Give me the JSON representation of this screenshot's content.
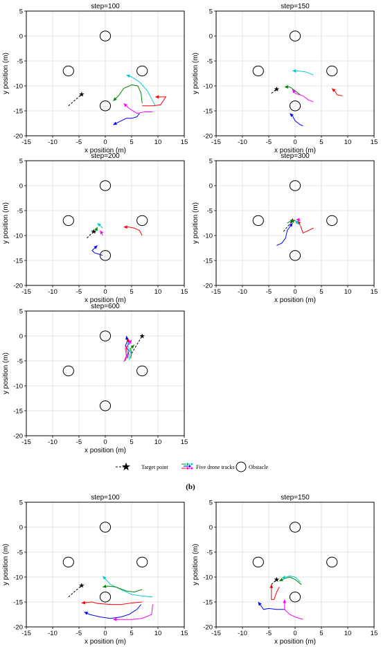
{
  "colors": {
    "drone_1": "#0000ff",
    "drone_2": "#ff0000",
    "drone_3": "#00aaff",
    "drone_4": "#00cccc",
    "drone_5": "#ff00ff",
    "drone_green": "#008800",
    "target": "#000000",
    "grid": "#dddddd"
  },
  "legend": {
    "target_label": "Target point",
    "tracks_label": "Five drone tracks",
    "obstacle_label": "Obstacle"
  },
  "sublabel": "(b)",
  "chart_data": [
    {
      "type": "line",
      "title": "step=100",
      "xlabel": "x position (m)",
      "ylabel": "y position (m)",
      "xlim": [
        -15,
        15
      ],
      "ylim": [
        -20,
        5
      ],
      "xticks": [
        -15,
        -10,
        -5,
        0,
        5,
        10,
        15
      ],
      "yticks": [
        5,
        0,
        -5,
        -10,
        -15,
        -20
      ],
      "grid": true,
      "obstacles": [
        [
          0,
          0
        ],
        [
          -7,
          -7
        ],
        [
          7,
          -7
        ],
        [
          0,
          -14
        ]
      ],
      "obstacle_radius": 1,
      "target": {
        "x": [
          -7,
          -4.5
        ],
        "y": [
          -14,
          -11.7
        ]
      },
      "series": [
        {
          "color": "#008800",
          "x": [
            7,
            6.8,
            6.2,
            5,
            3.5,
            2.5,
            1.5
          ],
          "y": [
            -13.5,
            -11.5,
            -10,
            -9.8,
            -10.5,
            -12,
            -13
          ]
        },
        {
          "color": "#00cccc",
          "x": [
            9.5,
            8,
            6.5,
            5,
            4
          ],
          "y": [
            -14,
            -11,
            -9.2,
            -8.2,
            -7.8
          ]
        },
        {
          "color": "#ff0000",
          "x": [
            7,
            9,
            10.5,
            11,
            11.5,
            9.5
          ],
          "y": [
            -14,
            -14,
            -13.8,
            -13,
            -12.2,
            -12.2
          ]
        },
        {
          "color": "#ff00ff",
          "x": [
            9,
            7.5,
            6,
            4.5,
            3.5
          ],
          "y": [
            -15.2,
            -15.2,
            -15.5,
            -14.5,
            -13.5
          ]
        },
        {
          "color": "#0000ff",
          "x": [
            6.5,
            6,
            5,
            4,
            3,
            1.5
          ],
          "y": [
            -15.5,
            -16.2,
            -16.5,
            -16.5,
            -17,
            -17.8
          ]
        }
      ]
    },
    {
      "type": "line",
      "title": "step=150",
      "xlabel": "x position (m)",
      "ylabel": "y position (m)",
      "xlim": [
        -15,
        15
      ],
      "ylim": [
        -20,
        5
      ],
      "xticks": [
        -15,
        -10,
        -5,
        0,
        5,
        10,
        15
      ],
      "yticks": [
        5,
        0,
        -5,
        -10,
        -15,
        -20
      ],
      "grid": true,
      "obstacles": [
        [
          0,
          0
        ],
        [
          -7,
          -7
        ],
        [
          7,
          -7
        ],
        [
          0,
          -14
        ]
      ],
      "obstacle_radius": 1,
      "target": {
        "x": [
          -4.5,
          -3.5
        ],
        "y": [
          -11.5,
          -10.6
        ]
      },
      "series": [
        {
          "color": "#00cccc",
          "x": [
            3.5,
            2,
            0.5,
            -0.5
          ],
          "y": [
            -7.8,
            -7.2,
            -7,
            -7
          ]
        },
        {
          "color": "#008800",
          "x": [
            1,
            0,
            -1,
            -2
          ],
          "y": [
            -11.8,
            -11,
            -10.2,
            -10.2
          ]
        },
        {
          "color": "#ff00ff",
          "x": [
            3.5,
            2.5,
            1.5,
            0,
            -0.5
          ],
          "y": [
            -13.2,
            -12.8,
            -12,
            -11.5,
            -10.7
          ]
        },
        {
          "color": "#ff0000",
          "x": [
            9,
            8,
            7.5,
            7
          ],
          "y": [
            -12,
            -11.8,
            -11,
            -10.5
          ]
        },
        {
          "color": "#0000ff",
          "x": [
            1.5,
            1,
            0,
            -0.5,
            -1
          ],
          "y": [
            -18,
            -17.8,
            -17,
            -16,
            -15.5
          ]
        }
      ]
    },
    {
      "type": "line",
      "title": "step=200",
      "xlabel": "x position (m)",
      "ylabel": "y position (m)",
      "xlim": [
        -15,
        15
      ],
      "ylim": [
        -20,
        5
      ],
      "xticks": [
        -15,
        -10,
        -5,
        0,
        5,
        10,
        15
      ],
      "yticks": [
        5,
        0,
        -5,
        -10,
        -15,
        -20
      ],
      "grid": true,
      "obstacles": [
        [
          0,
          0
        ],
        [
          -7,
          -7
        ],
        [
          7,
          -7
        ],
        [
          0,
          -14
        ]
      ],
      "obstacle_radius": 1,
      "target": {
        "x": [
          -3.5,
          -2.2
        ],
        "y": [
          -10.5,
          -9.2
        ]
      },
      "series": [
        {
          "color": "#ff0000",
          "x": [
            7,
            6.5,
            5.5,
            4.5,
            3.5
          ],
          "y": [
            -10,
            -9,
            -8.5,
            -8.3,
            -8.3
          ]
        },
        {
          "color": "#0000ff",
          "x": [
            -0.5,
            -1,
            -2,
            -2.5,
            -1.5
          ],
          "y": [
            -14,
            -13.8,
            -13.5,
            -13,
            -12
          ]
        },
        {
          "color": "#00cccc",
          "x": [
            -0.5,
            -1,
            -1.5
          ],
          "y": [
            -8.5,
            -8,
            -7.5
          ]
        },
        {
          "color": "#ff00ff",
          "x": [
            -0.5,
            -0.8,
            -1
          ],
          "y": [
            -10,
            -9.3,
            -9
          ]
        },
        {
          "color": "#008800",
          "x": [
            -2,
            -1.8,
            -1.5
          ],
          "y": [
            -9.5,
            -9,
            -8.3
          ]
        }
      ]
    },
    {
      "type": "line",
      "title": "step=300",
      "xlabel": "x position (m)",
      "ylabel": "y position (m)",
      "xlim": [
        -15,
        15
      ],
      "ylim": [
        -20,
        5
      ],
      "xticks": [
        -15,
        -10,
        -5,
        0,
        5,
        10,
        15
      ],
      "yticks": [
        5,
        0,
        -5,
        -10,
        -15,
        -20
      ],
      "grid": true,
      "obstacles": [
        [
          0,
          0
        ],
        [
          -7,
          -7
        ],
        [
          7,
          -7
        ],
        [
          0,
          -14
        ]
      ],
      "obstacle_radius": 1,
      "target": {
        "x": [
          -2.2,
          -0.5
        ],
        "y": [
          -9.2,
          -7
        ]
      },
      "series": [
        {
          "color": "#0000ff",
          "x": [
            -3.5,
            -2.5,
            -1.8,
            -1.5,
            -0.5
          ],
          "y": [
            -12,
            -11.5,
            -10.5,
            -9,
            -7.5
          ]
        },
        {
          "color": "#ff0000",
          "x": [
            3.5,
            2.5,
            1.5,
            1,
            0.5
          ],
          "y": [
            -8.5,
            -9,
            -9.5,
            -8,
            -7
          ]
        },
        {
          "color": "#008800",
          "x": [
            -1.5,
            -1,
            0
          ],
          "y": [
            -7.5,
            -7.2,
            -7
          ]
        },
        {
          "color": "#00cccc",
          "x": [
            1,
            0.5,
            0
          ],
          "y": [
            -8,
            -7.5,
            -7
          ]
        },
        {
          "color": "#ff00ff",
          "x": [
            1,
            0.5,
            0.2
          ],
          "y": [
            -7,
            -6.8,
            -6.8
          ]
        }
      ]
    },
    {
      "type": "line",
      "title": "step=600",
      "xlabel": "x position (m)",
      "ylabel": "y position (m)",
      "xlim": [
        -15,
        15
      ],
      "ylim": [
        -20,
        5
      ],
      "xticks": [
        -15,
        -10,
        -5,
        0,
        5,
        10,
        15
      ],
      "yticks": [
        5,
        0,
        -5,
        -10,
        -15,
        -20
      ],
      "grid": true,
      "obstacles": [
        [
          0,
          0
        ],
        [
          -7,
          -7
        ],
        [
          7,
          -7
        ],
        [
          0,
          -14
        ]
      ],
      "obstacle_radius": 1,
      "target": {
        "x": [
          5,
          7
        ],
        "y": [
          -3.5,
          0
        ]
      },
      "series": [
        {
          "color": "#0000ff",
          "x": [
            4.2,
            4.5,
            3.8,
            4.2,
            4
          ],
          "y": [
            -4.5,
            -3,
            -2,
            -1,
            0
          ]
        },
        {
          "color": "#ff0000",
          "x": [
            3.8,
            4.2,
            4,
            4.5,
            4.3
          ],
          "y": [
            -5,
            -3.5,
            -2.5,
            -1.5,
            -0.5
          ]
        },
        {
          "color": "#00cccc",
          "x": [
            4.5,
            4.8,
            4.3,
            4.6
          ],
          "y": [
            -4.8,
            -3.2,
            -2,
            -1
          ]
        },
        {
          "color": "#ff00ff",
          "x": [
            3.5,
            4,
            3.8,
            4.5,
            5
          ],
          "y": [
            -5.2,
            -4,
            -2.5,
            -1.5,
            -0.8
          ]
        },
        {
          "color": "#008800",
          "x": [
            4.8,
            5,
            4.8,
            5.5
          ],
          "y": [
            -4.5,
            -3.5,
            -2.5,
            -1.8
          ]
        }
      ]
    },
    {
      "type": "line",
      "title": "step=100",
      "xlabel": "x position (m)",
      "ylabel": "y position (m)",
      "xlim": [
        -15,
        15
      ],
      "ylim": [
        -20,
        5
      ],
      "xticks": [
        -15,
        -10,
        -5,
        0,
        5,
        10,
        15
      ],
      "yticks": [
        5,
        0,
        -5,
        -10,
        -15,
        -20
      ],
      "grid": true,
      "obstacles": [
        [
          0,
          0
        ],
        [
          -7,
          -7
        ],
        [
          7,
          -7
        ],
        [
          0,
          -14
        ]
      ],
      "obstacle_radius": 1,
      "target": {
        "x": [
          -7,
          -4.5
        ],
        "y": [
          -14,
          -11.7
        ]
      },
      "series": [
        {
          "color": "#00cccc",
          "x": [
            9,
            7,
            5,
            3,
            1,
            -0.5
          ],
          "y": [
            -14,
            -13.8,
            -13.5,
            -12.5,
            -11.5,
            -9.8
          ]
        },
        {
          "color": "#008800",
          "x": [
            7,
            5.5,
            4,
            2,
            0.5,
            -0.5
          ],
          "y": [
            -12.5,
            -13,
            -12.8,
            -12,
            -11.8,
            -12
          ]
        },
        {
          "color": "#ff0000",
          "x": [
            7,
            5,
            3,
            1,
            -1.5,
            -2.5,
            -4.5
          ],
          "y": [
            -15,
            -15.2,
            -15.5,
            -15.5,
            -15.3,
            -15,
            -15.2
          ]
        },
        {
          "color": "#ff00ff",
          "x": [
            9,
            8.8,
            7,
            5,
            3,
            1.5
          ],
          "y": [
            -15.5,
            -17.5,
            -18.3,
            -18.5,
            -18.5,
            -18.5
          ]
        },
        {
          "color": "#0000ff",
          "x": [
            6.8,
            6,
            4.5,
            3,
            1,
            -1,
            -3,
            -4
          ],
          "y": [
            -15.5,
            -16.5,
            -17.5,
            -18,
            -18.3,
            -18,
            -17.5,
            -17
          ]
        }
      ]
    },
    {
      "type": "line",
      "title": "step=150",
      "xlabel": "x position (m)",
      "ylabel": "y position (m)",
      "xlim": [
        -15,
        15
      ],
      "ylim": [
        -20,
        5
      ],
      "xticks": [
        -15,
        -10,
        -5,
        0,
        5,
        10,
        15
      ],
      "yticks": [
        5,
        0,
        -5,
        -10,
        -15,
        -20
      ],
      "grid": true,
      "obstacles": [
        [
          0,
          0
        ],
        [
          -7,
          -7
        ],
        [
          7,
          -7
        ],
        [
          0,
          -14
        ]
      ],
      "obstacle_radius": 1,
      "target": {
        "x": [
          -4.5,
          -3.5
        ],
        "y": [
          -11.5,
          -10.5
        ]
      },
      "series": [
        {
          "color": "#008800",
          "x": [
            1.2,
            0,
            -1,
            -2,
            -3
          ],
          "y": [
            -11.5,
            -10.5,
            -10,
            -10.3,
            -10.8
          ]
        },
        {
          "color": "#00cccc",
          "x": [
            1,
            0,
            -1,
            -2.5
          ],
          "y": [
            -11,
            -10,
            -9.8,
            -10.2
          ]
        },
        {
          "color": "#ff0000",
          "x": [
            -3,
            -3.5,
            -4,
            -4.5,
            -4.5
          ],
          "y": [
            -12,
            -13,
            -14.5,
            -14.5,
            -11.5
          ]
        },
        {
          "color": "#ff00ff",
          "x": [
            1.5,
            0,
            -1,
            -2,
            -2
          ],
          "y": [
            -18.5,
            -18,
            -17.5,
            -16.5,
            -14.5
          ]
        },
        {
          "color": "#0000ff",
          "x": [
            -2,
            -3.5,
            -5,
            -6,
            -7
          ],
          "y": [
            -16.5,
            -16.5,
            -16.3,
            -16.5,
            -15
          ]
        }
      ]
    }
  ]
}
